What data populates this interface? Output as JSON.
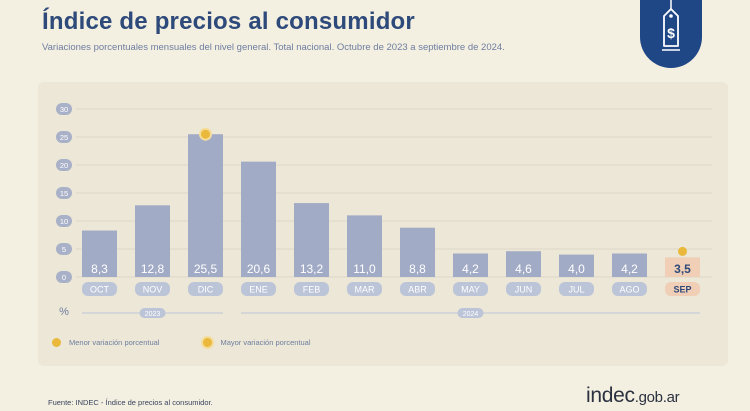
{
  "header": {
    "title": "Índice de precios al consumidor",
    "subtitle": "Variaciones porcentuales mensuales del nivel general. Total nacional. Octubre de 2023 a septiembre de 2024."
  },
  "badge": {
    "icon": "dollar-price-tag-icon",
    "color": "#1f4786"
  },
  "chart_data": {
    "type": "bar",
    "categories": [
      "OCT",
      "NOV",
      "DIC",
      "ENE",
      "FEB",
      "MAR",
      "ABR",
      "MAY",
      "JUN",
      "JUL",
      "AGO",
      "SEP"
    ],
    "values": [
      8.3,
      12.8,
      25.5,
      20.6,
      13.2,
      11.0,
      8.8,
      4.2,
      4.6,
      4.0,
      4.2,
      3.5
    ],
    "value_labels": [
      "8,3",
      "12,8",
      "25,5",
      "20,6",
      "13,2",
      "11,0",
      "8,8",
      "4,2",
      "4,6",
      "4,0",
      "4,2",
      "3,5"
    ],
    "ylim": [
      0,
      30
    ],
    "yticks": [
      "0",
      "5",
      "10",
      "15",
      "20",
      "25",
      "30"
    ],
    "ylabel": "%",
    "years": [
      {
        "label": "2023",
        "from": 0,
        "to": 2
      },
      {
        "label": "2024",
        "from": 3,
        "to": 11
      }
    ],
    "highlight_max_index": 2,
    "highlight_min_index": 11,
    "grid": true,
    "colors": {
      "bar": "#a2abc6",
      "bar_min": "#f0cfb6",
      "marker": "#eab83a",
      "category_pill": "#bcc4d8",
      "category_pill_min": "#f0cfb6"
    }
  },
  "legend": {
    "min_label": "Menor variación porcentual",
    "max_label": "Mayor variación porcentual"
  },
  "footer": {
    "source": "Fuente: INDEC - Índice de precios al consumidor.",
    "brand_main": "indec",
    "brand_suffix": ".gob.ar"
  }
}
